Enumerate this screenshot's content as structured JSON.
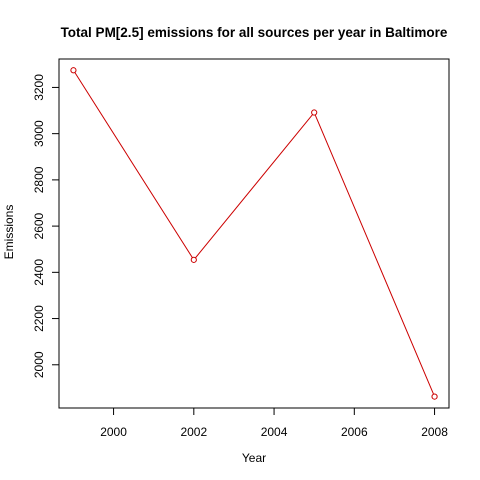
{
  "chart_data": {
    "type": "line",
    "title": "Total PM[2.5] emissions for all sources per year in Baltimore",
    "xlabel": "Year",
    "ylabel": "Emissions",
    "x": [
      1999,
      2002,
      2005,
      2008
    ],
    "series": [
      {
        "values": [
          3274.2,
          2453.9,
          3091.4,
          1862.3
        ]
      }
    ],
    "xticks": [
      "2000",
      "2002",
      "2004",
      "2006",
      "2008"
    ],
    "yticks": [
      "2000",
      "2200",
      "2400",
      "2600",
      "2800",
      "3000",
      "3200"
    ],
    "xlim": [
      1998.64,
      2008.36
    ],
    "ylim": [
      1813.0,
      3323.0
    ],
    "grid": false,
    "colors": {
      "line": "#cc0000",
      "marker": "#cc0000",
      "axis": "#000000"
    }
  }
}
